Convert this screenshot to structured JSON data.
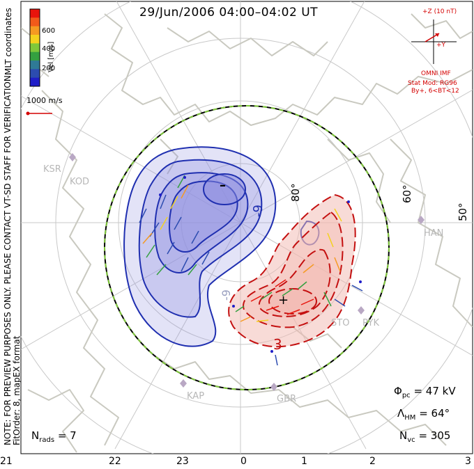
{
  "title": "29/Jun/2006 04:00–04:02 UT",
  "side_note": {
    "line1": "NOTE: FOR PREVIEW PURPOSES ONLY. PLEASE CONTACT VT-SD STAFF FOR VERIFICATION.",
    "line2": "FitOrder: 8, mapEX format"
  },
  "mlt_label": "MLT coordinates",
  "colorbar": {
    "title": "Vel [m/s]",
    "ticks": [
      "600",
      "400",
      "200"
    ],
    "colors": [
      "#e8140c",
      "#f25a1a",
      "#f59a22",
      "#f4d21e",
      "#7fc83a",
      "#34a040",
      "#2f7a96",
      "#2c4cb0",
      "#1f1ec8"
    ]
  },
  "scale_vector": {
    "label": "1000 m/s",
    "color": "#d40000"
  },
  "imf": {
    "z_label": "+Z (10 nT)",
    "y_label": "+Y",
    "source": "OMNI IMF",
    "model_line1": "Stat Mod: RG96",
    "model_line2": "By+, 6<BT<12",
    "color": "#d40000"
  },
  "latitude_labels": [
    "80°",
    "60°",
    "50°"
  ],
  "contour_labels": [
    "-9",
    "3",
    "-9"
  ],
  "extreme_markers": [
    "–",
    "+"
  ],
  "sites": [
    "KSR",
    "KOD",
    "HAN",
    "STO",
    "PYK",
    "KAP",
    "GBR"
  ],
  "stats": {
    "phi_symbol": "Φ",
    "phi_sub": "pc",
    "phi_value": "= 47 kV",
    "lambda_symbol": "Λ",
    "lambda_sub": "HM",
    "lambda_value": "= 64°",
    "nvc_symbol": "N",
    "nvc_sub": "vc",
    "nvc_value": "= 305",
    "nrads_symbol": "N",
    "nrads_sub": "rads",
    "nrads_value": "= 7"
  },
  "mlt_hours": [
    "21",
    "22",
    "23",
    "0",
    "1",
    "2",
    "3"
  ],
  "colors": {
    "negative_cell_line": "#1f2fb0",
    "negative_cell_fill": "#8e8ee0",
    "positive_cell_line": "#c41010",
    "positive_cell_fill": "#f2b8b0",
    "coast": "#c9c9c0",
    "grid": "#c8c8c8",
    "hmb_boundary": "#7fc83a"
  }
}
